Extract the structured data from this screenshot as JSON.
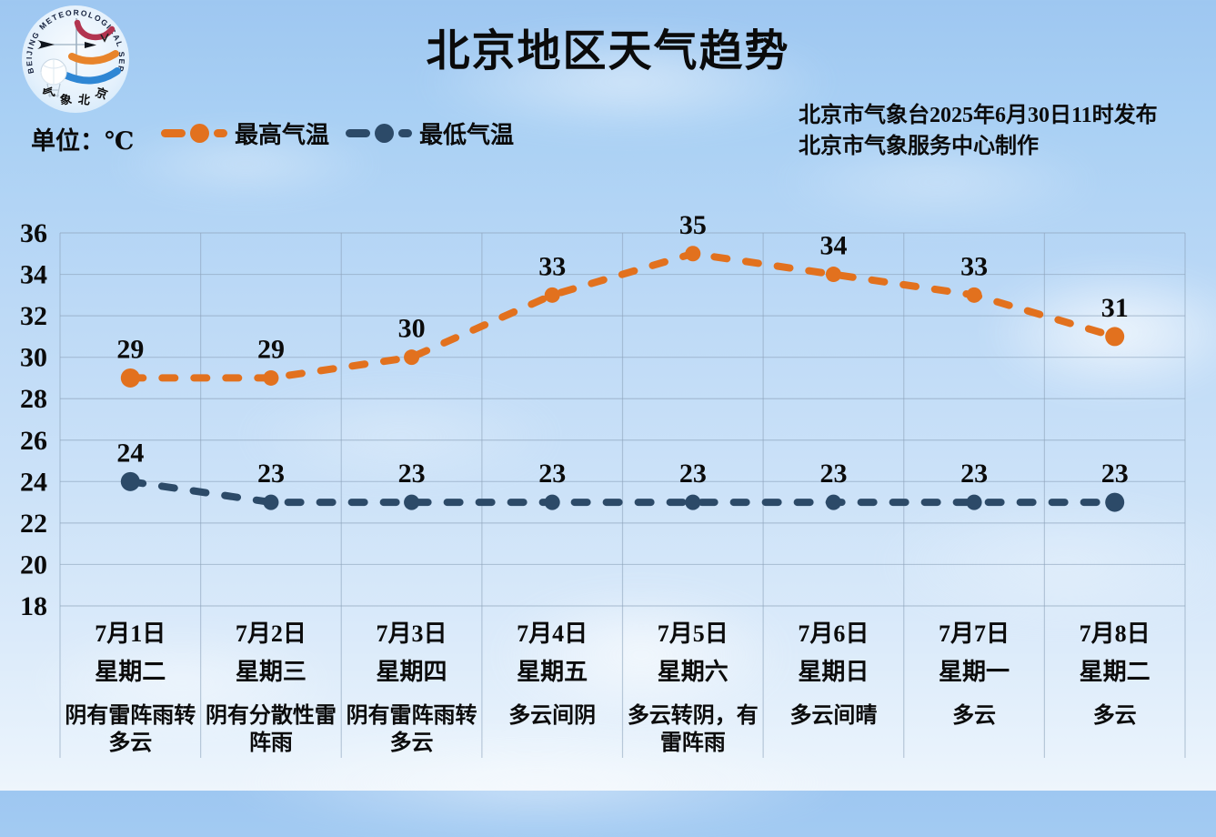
{
  "header": {
    "title": "北京地区天气趋势",
    "unit_label": "单位：℃",
    "publisher_line1": "北京市气象台2025年6月30日11时发布",
    "publisher_line2": "北京市气象服务中心制作",
    "logo": {
      "ring_text": "BEIJING METEOROLOGICAL SERVICE",
      "bottom_chars": [
        "气",
        "象",
        "北",
        "京"
      ]
    }
  },
  "chart_data": {
    "type": "line",
    "title": "北京地区天气趋势",
    "unit": "℃",
    "ylim": [
      18,
      36
    ],
    "ytick_step": 2,
    "grid": true,
    "legend_position": "top-left",
    "line_style": "dashed-with-point-markers",
    "categories": [
      "7月1日",
      "7月2日",
      "7月3日",
      "7月4日",
      "7月5日",
      "7月6日",
      "7月7日",
      "7月8日"
    ],
    "days": [
      {
        "date": "7月1日",
        "weekday": "星期二",
        "weather": "阴有雷阵雨转多云"
      },
      {
        "date": "7月2日",
        "weekday": "星期三",
        "weather": "阴有分散性雷阵雨"
      },
      {
        "date": "7月3日",
        "weekday": "星期四",
        "weather": "阴有雷阵雨转多云"
      },
      {
        "date": "7月4日",
        "weekday": "星期五",
        "weather": "多云间阴"
      },
      {
        "date": "7月5日",
        "weekday": "星期六",
        "weather": "多云转阴，有雷阵雨"
      },
      {
        "date": "7月6日",
        "weekday": "星期日",
        "weather": "多云间晴"
      },
      {
        "date": "7月7日",
        "weekday": "星期一",
        "weather": "多云"
      },
      {
        "date": "7月8日",
        "weekday": "星期二",
        "weather": "多云"
      }
    ],
    "series": [
      {
        "name": "最高气温",
        "color": "#e2711e",
        "values": [
          29,
          29,
          30,
          33,
          35,
          34,
          33,
          31
        ]
      },
      {
        "name": "最低气温",
        "color": "#2c4a68",
        "values": [
          24,
          23,
          23,
          23,
          23,
          23,
          23,
          23
        ]
      }
    ]
  }
}
